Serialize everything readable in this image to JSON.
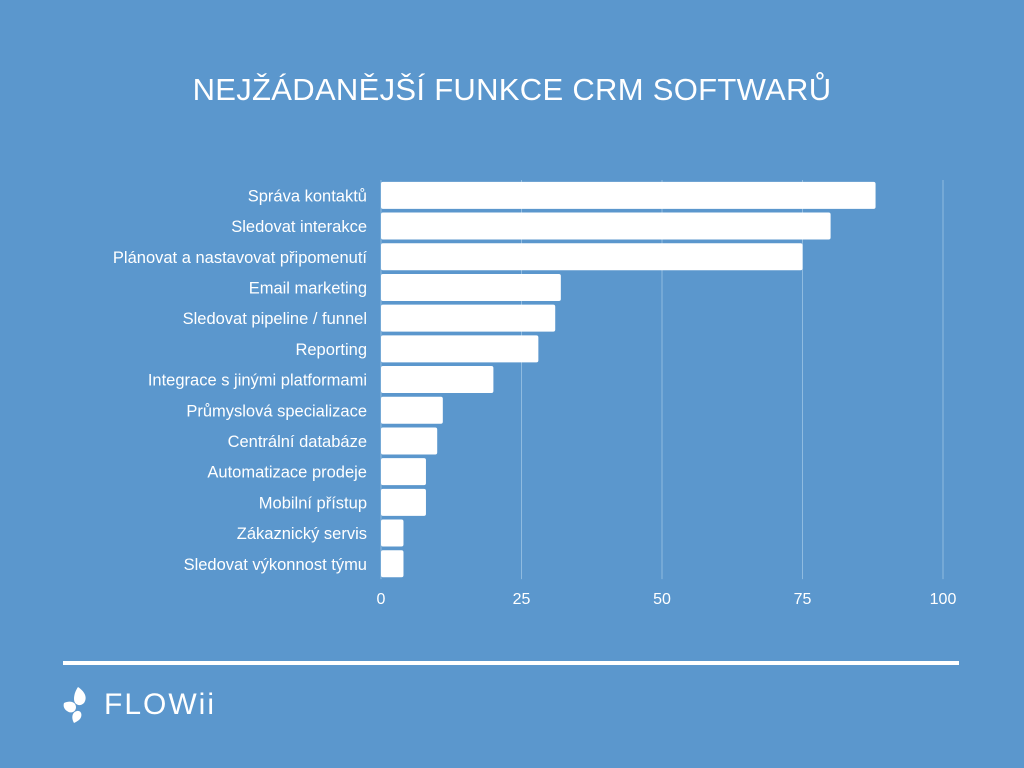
{
  "title": "NEJŽÁDANĚJŠÍ FUNKCE CRM SOFTWARŮ",
  "brand": {
    "name": "FLOWii",
    "icon": "flowii-drops-logo-icon"
  },
  "colors": {
    "background": "#5b97cd",
    "bar": "#ffffff",
    "text": "#ffffff",
    "gridline": "#8fbbe0"
  },
  "chart_data": {
    "type": "bar",
    "orientation": "horizontal",
    "title": "NEJŽÁDANĚJŠÍ FUNKCE CRM SOFTWARŮ",
    "xlabel": "",
    "ylabel": "",
    "categories": [
      "Správa kontaktů",
      "Sledovat interakce",
      "Plánovat a nastavovat připomenutí",
      "Email marketing",
      "Sledovat pipeline / funnel",
      "Reporting",
      "Integrace s jinými platformami",
      "Průmyslová specializace",
      "Centrální databáze",
      "Automatizace prodeje",
      "Mobilní přístup",
      "Zákaznický servis",
      "Sledovat výkonnost týmu"
    ],
    "values": [
      88,
      80,
      75,
      32,
      31,
      28,
      20,
      11,
      10,
      8,
      8,
      4,
      4
    ],
    "xlim": [
      0,
      100
    ],
    "xticks": [
      0,
      25,
      50,
      75,
      100
    ],
    "grid": "vertical",
    "legend": "none"
  }
}
